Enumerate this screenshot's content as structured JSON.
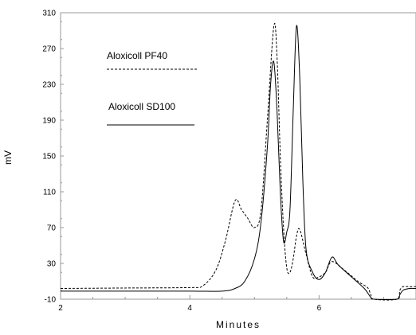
{
  "chart_data": {
    "type": "line",
    "title": "",
    "xlabel": "Minutes",
    "ylabel": "mV",
    "xlim": [
      2,
      7.5
    ],
    "ylim": [
      -10,
      310
    ],
    "x_ticks": [
      2,
      4,
      6
    ],
    "y_ticks": [
      -10,
      30,
      70,
      110,
      150,
      190,
      230,
      270,
      310
    ],
    "x_tick_labels": [
      "2",
      "4",
      "6"
    ],
    "y_tick_labels": [
      "-10",
      "30",
      "70",
      "110",
      "150",
      "190",
      "230",
      "270",
      "310"
    ],
    "grid": false,
    "legend_position": "top-left",
    "series": [
      {
        "name": "Aloxicoll PF40",
        "line_style": "dashed",
        "color": "#000000",
        "x": [
          2.0,
          3.0,
          4.0,
          4.2,
          4.4,
          4.55,
          4.7,
          4.8,
          4.9,
          5.0,
          5.1,
          5.2,
          5.3,
          5.35,
          5.4,
          5.45,
          5.5,
          5.55,
          5.6,
          5.65,
          5.7,
          5.8,
          5.9,
          6.0,
          6.1,
          6.2,
          6.4,
          6.6,
          6.75,
          6.8,
          6.85,
          7.2,
          7.25,
          7.3,
          7.4,
          7.5
        ],
        "y": [
          2,
          2.5,
          3,
          5,
          22,
          55,
          100,
          90,
          80,
          70,
          88,
          190,
          295,
          260,
          150,
          70,
          25,
          20,
          35,
          60,
          68,
          40,
          15,
          15,
          20,
          32,
          22,
          10,
          3,
          -5,
          -10,
          -10,
          0,
          4,
          4,
          4
        ]
      },
      {
        "name": "Aloxicoll SD100",
        "line_style": "solid",
        "color": "#000000",
        "x": [
          2.0,
          3.0,
          4.0,
          4.5,
          4.7,
          4.85,
          5.0,
          5.1,
          5.2,
          5.25,
          5.3,
          5.35,
          5.4,
          5.45,
          5.5,
          5.55,
          5.6,
          5.65,
          5.7,
          5.75,
          5.8,
          5.9,
          6.0,
          6.1,
          6.2,
          6.3,
          6.5,
          6.7,
          6.8,
          6.85,
          7.2,
          7.25,
          7.3,
          7.4,
          7.5
        ],
        "y": [
          -1,
          -1,
          -1,
          -1,
          2,
          10,
          35,
          75,
          160,
          230,
          255,
          200,
          110,
          55,
          65,
          90,
          200,
          295,
          240,
          120,
          45,
          20,
          12,
          20,
          37,
          28,
          15,
          2,
          -8,
          -10,
          -10,
          -5,
          0,
          2,
          2
        ]
      }
    ]
  }
}
